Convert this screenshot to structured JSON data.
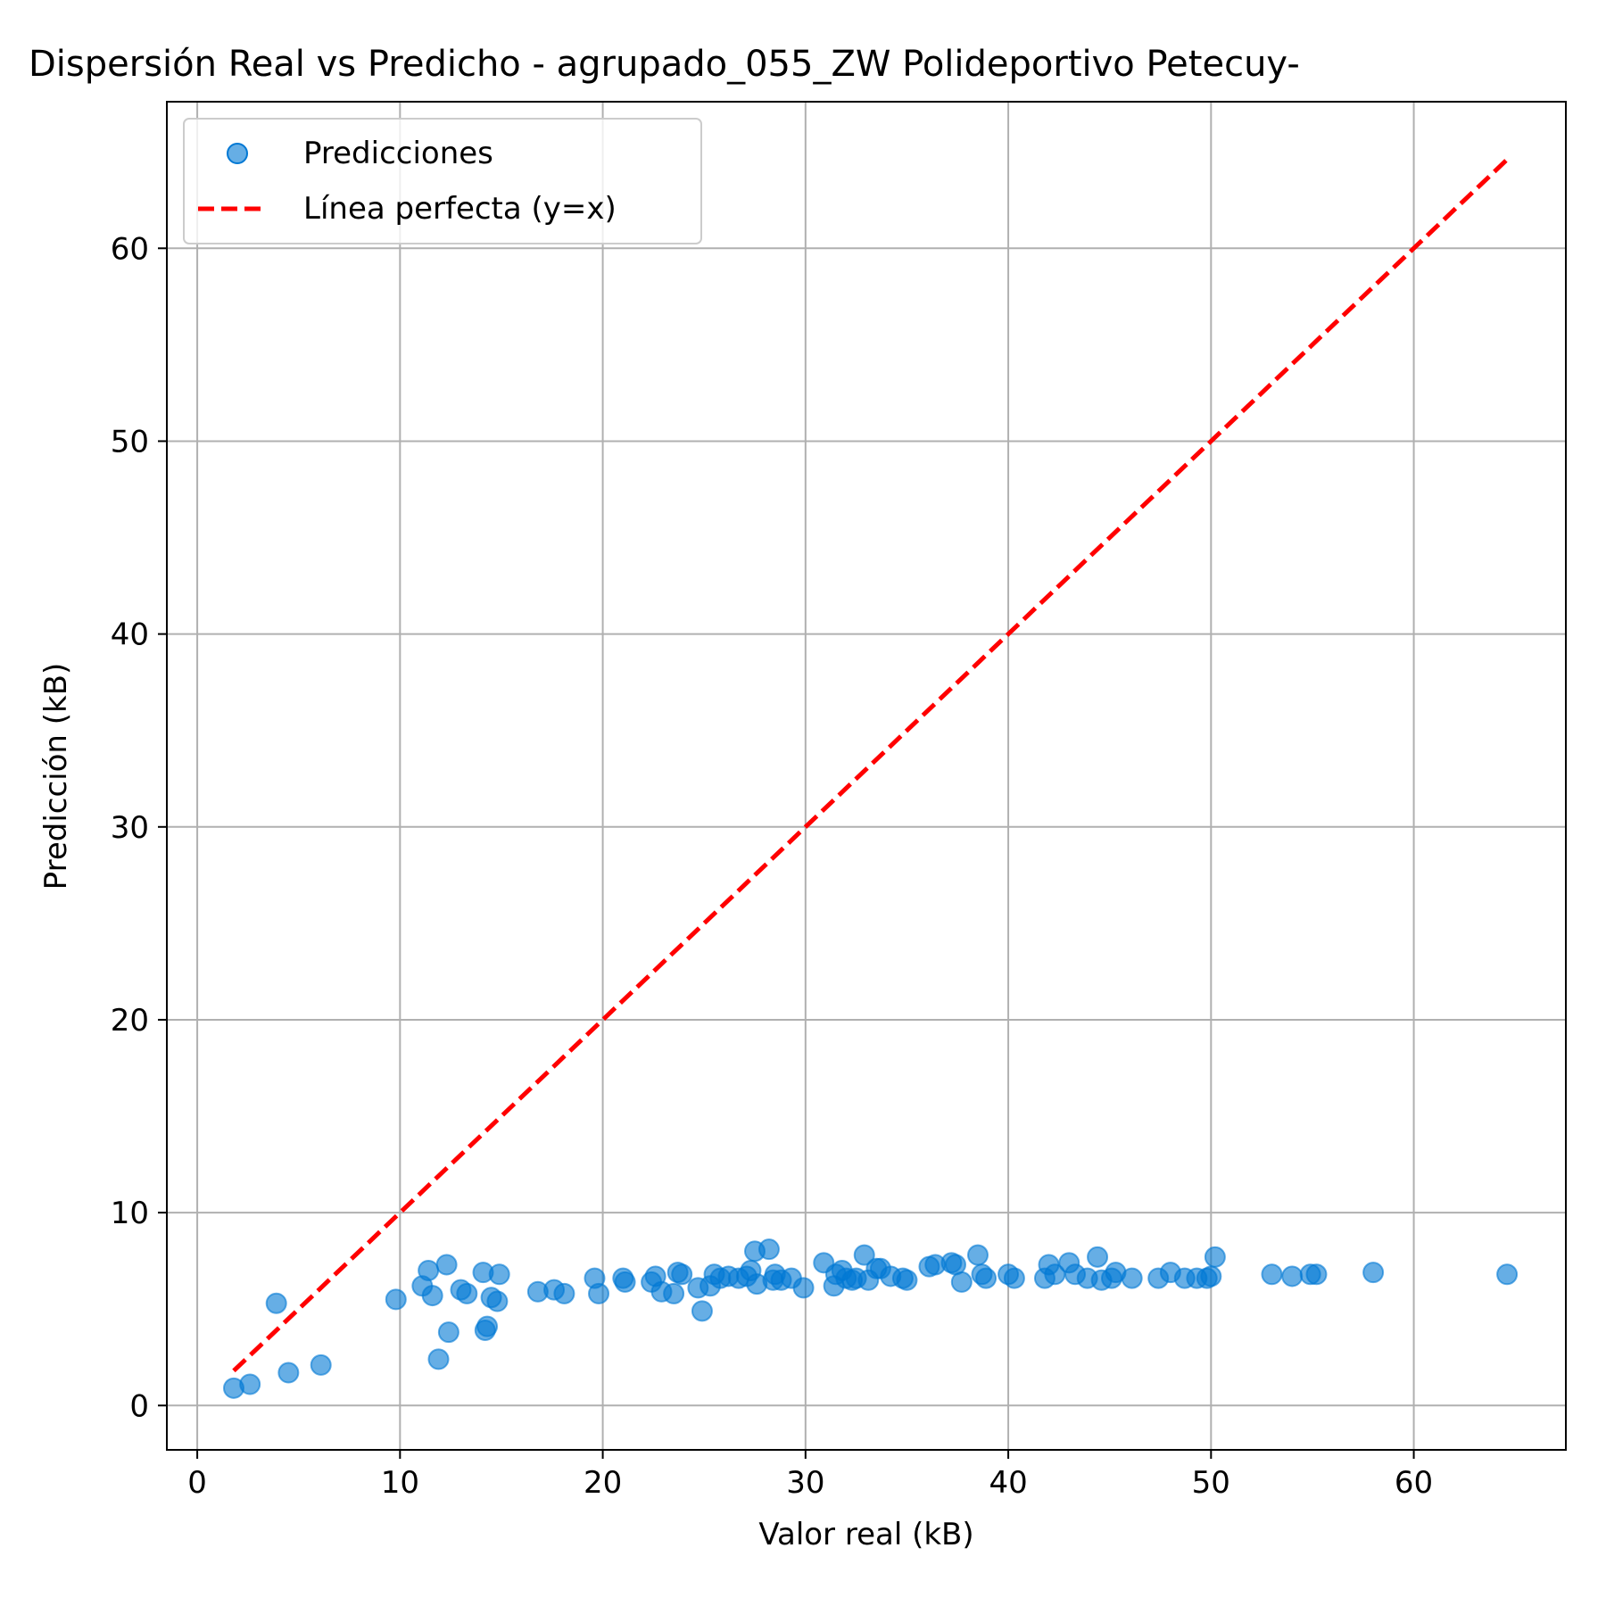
{
  "chart_data": {
    "type": "scatter",
    "title": "Dispersión Real vs Predicho - agrupado_055_ZW Polideportivo Petecuy-",
    "xlabel": "Valor real (kB)",
    "ylabel": "Predicción (kB)",
    "xlim": [
      -1.5,
      67.5
    ],
    "ylim": [
      -2.3,
      67.6
    ],
    "xticks": [
      0,
      10,
      20,
      30,
      40,
      50,
      60
    ],
    "yticks": [
      0,
      10,
      20,
      30,
      40,
      50,
      60
    ],
    "grid": true,
    "legend": {
      "position": "top-left",
      "entries": [
        "Predicciones",
        "Línea perfecta (y=x)"
      ]
    },
    "colors": {
      "points": "#0078d4",
      "perfect_line": "#ff0000",
      "grid": "#b0b0b0"
    },
    "series": [
      {
        "name": "Predicciones",
        "kind": "scatter",
        "points": [
          [
            1.8,
            0.9
          ],
          [
            2.6,
            1.1
          ],
          [
            3.9,
            5.3
          ],
          [
            4.5,
            1.7
          ],
          [
            6.1,
            2.1
          ],
          [
            9.8,
            5.5
          ],
          [
            11.1,
            6.2
          ],
          [
            11.4,
            7.0
          ],
          [
            11.6,
            5.7
          ],
          [
            11.9,
            2.4
          ],
          [
            12.3,
            7.3
          ],
          [
            12.4,
            3.8
          ],
          [
            13.0,
            6.0
          ],
          [
            13.3,
            5.8
          ],
          [
            14.1,
            6.9
          ],
          [
            14.2,
            3.9
          ],
          [
            14.3,
            4.1
          ],
          [
            14.5,
            5.6
          ],
          [
            14.8,
            5.4
          ],
          [
            14.9,
            6.8
          ],
          [
            16.8,
            5.9
          ],
          [
            17.6,
            6.0
          ],
          [
            18.1,
            5.8
          ],
          [
            19.6,
            6.6
          ],
          [
            19.8,
            5.8
          ],
          [
            21.0,
            6.6
          ],
          [
            21.1,
            6.4
          ],
          [
            22.4,
            6.4
          ],
          [
            22.6,
            6.7
          ],
          [
            22.9,
            5.9
          ],
          [
            23.5,
            5.8
          ],
          [
            23.7,
            6.9
          ],
          [
            23.9,
            6.8
          ],
          [
            24.7,
            6.1
          ],
          [
            24.9,
            4.9
          ],
          [
            25.3,
            6.2
          ],
          [
            25.5,
            6.8
          ],
          [
            25.8,
            6.6
          ],
          [
            26.2,
            6.7
          ],
          [
            26.7,
            6.6
          ],
          [
            27.1,
            6.7
          ],
          [
            27.3,
            7.0
          ],
          [
            27.5,
            8.0
          ],
          [
            27.6,
            6.3
          ],
          [
            28.2,
            8.1
          ],
          [
            28.4,
            6.5
          ],
          [
            28.5,
            6.8
          ],
          [
            28.8,
            6.5
          ],
          [
            29.3,
            6.6
          ],
          [
            29.9,
            6.1
          ],
          [
            30.9,
            7.4
          ],
          [
            31.4,
            6.2
          ],
          [
            31.5,
            6.8
          ],
          [
            31.8,
            7.0
          ],
          [
            32.0,
            6.6
          ],
          [
            32.3,
            6.5
          ],
          [
            32.5,
            6.6
          ],
          [
            32.9,
            7.8
          ],
          [
            33.1,
            6.5
          ],
          [
            33.5,
            7.1
          ],
          [
            33.7,
            7.1
          ],
          [
            34.2,
            6.7
          ],
          [
            34.8,
            6.6
          ],
          [
            35.0,
            6.5
          ],
          [
            36.1,
            7.2
          ],
          [
            36.4,
            7.3
          ],
          [
            37.2,
            7.4
          ],
          [
            37.4,
            7.3
          ],
          [
            37.7,
            6.4
          ],
          [
            38.5,
            7.8
          ],
          [
            38.7,
            6.8
          ],
          [
            38.9,
            6.6
          ],
          [
            40.0,
            6.8
          ],
          [
            40.3,
            6.6
          ],
          [
            41.8,
            6.6
          ],
          [
            42.0,
            7.3
          ],
          [
            42.3,
            6.8
          ],
          [
            43.0,
            7.4
          ],
          [
            43.3,
            6.8
          ],
          [
            43.9,
            6.6
          ],
          [
            44.4,
            7.7
          ],
          [
            44.6,
            6.5
          ],
          [
            45.1,
            6.6
          ],
          [
            45.3,
            6.9
          ],
          [
            46.1,
            6.6
          ],
          [
            47.4,
            6.6
          ],
          [
            48.0,
            6.9
          ],
          [
            48.7,
            6.6
          ],
          [
            49.3,
            6.6
          ],
          [
            49.8,
            6.6
          ],
          [
            50.0,
            6.7
          ],
          [
            50.2,
            7.7
          ],
          [
            53.0,
            6.8
          ],
          [
            54.0,
            6.7
          ],
          [
            54.9,
            6.8
          ],
          [
            55.2,
            6.8
          ],
          [
            58.0,
            6.9
          ],
          [
            64.6,
            6.8
          ]
        ]
      },
      {
        "name": "Línea perfecta (y=x)",
        "kind": "line",
        "x": [
          1.8,
          64.6
        ],
        "y": [
          1.8,
          64.6
        ]
      }
    ]
  }
}
